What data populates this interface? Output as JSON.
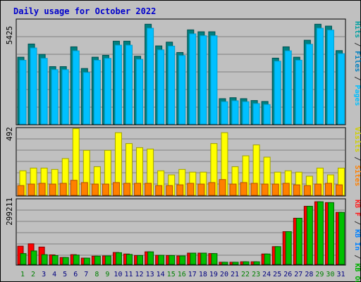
{
  "title": "Daily usage for October 2022",
  "colors": {
    "background": "#c0c0c0",
    "grid": "#808080",
    "title": "#0000cc",
    "hits": "#00c0ff",
    "hits_dark": "#00a0d0",
    "files": "#008080",
    "files_dark": "#005050",
    "pages": "#00ffff",
    "visits": "#ffff00",
    "sites": "#ff8000",
    "kb_in": "#00c000",
    "kb_out": "#ff0000",
    "day_weekend": "#008000",
    "day_weekday": "#000080"
  },
  "panel_labels": {
    "top": {
      "max": "5425",
      "legend": [
        "Hits",
        "Files",
        "Pages"
      ]
    },
    "middle": {
      "max": "492",
      "legend": [
        "Visits",
        "Sites"
      ]
    },
    "bottom": {
      "max": "299211",
      "legend": [
        "KB In",
        "KB Out",
        "KB F"
      ]
    }
  },
  "chart_data": [
    {
      "type": "bar",
      "title": "Daily usage for October 2022",
      "panel": "top",
      "categories": [
        "1",
        "2",
        "3",
        "4",
        "5",
        "6",
        "7",
        "8",
        "9",
        "10",
        "11",
        "12",
        "13",
        "14",
        "15",
        "16",
        "17",
        "18",
        "19",
        "20",
        "21",
        "22",
        "23",
        "24",
        "25",
        "26",
        "27",
        "28",
        "29",
        "30",
        "31"
      ],
      "ylim": [
        0,
        5425
      ],
      "series": [
        {
          "name": "Hits",
          "values": [
            3550,
            4250,
            3700,
            3050,
            3050,
            4100,
            2950,
            3550,
            3650,
            4400,
            4400,
            3600,
            5300,
            4150,
            4350,
            3800,
            5000,
            4900,
            4900,
            1350,
            1400,
            1350,
            1250,
            1200,
            3500,
            4100,
            3550,
            4450,
            5300,
            5200,
            3900
          ]
        },
        {
          "name": "Files",
          "values": [
            3500,
            4150,
            3600,
            3000,
            3000,
            4000,
            2850,
            3500,
            3600,
            4300,
            4300,
            3550,
            5200,
            4050,
            4250,
            3750,
            4900,
            4800,
            4800,
            1300,
            1350,
            1300,
            1200,
            1150,
            3450,
            4000,
            3500,
            4350,
            5200,
            5100,
            3850
          ]
        },
        {
          "name": "Pages",
          "values": [
            3500,
            4150,
            3600,
            3000,
            3000,
            4000,
            2850,
            3500,
            3600,
            4300,
            4300,
            3550,
            5200,
            4050,
            4250,
            3750,
            4900,
            4800,
            4800,
            1300,
            1350,
            1300,
            1200,
            1150,
            3450,
            4000,
            3500,
            4350,
            5200,
            5100,
            3850
          ]
        }
      ]
    },
    {
      "type": "bar",
      "panel": "middle",
      "categories": [
        "1",
        "2",
        "3",
        "4",
        "5",
        "6",
        "7",
        "8",
        "9",
        "10",
        "11",
        "12",
        "13",
        "14",
        "15",
        "16",
        "17",
        "18",
        "19",
        "20",
        "21",
        "22",
        "23",
        "24",
        "25",
        "26",
        "27",
        "28",
        "29",
        "30",
        "31"
      ],
      "ylim": [
        0,
        492
      ],
      "series": [
        {
          "name": "Visits",
          "values": [
            180,
            200,
            200,
            190,
            270,
            490,
            330,
            210,
            330,
            460,
            380,
            350,
            340,
            180,
            150,
            190,
            170,
            170,
            380,
            460,
            210,
            290,
            370,
            280,
            170,
            180,
            170,
            140,
            200,
            150,
            200
          ]
        },
        {
          "name": "Sites",
          "values": [
            130,
            150,
            160,
            150,
            160,
            200,
            170,
            150,
            150,
            170,
            160,
            160,
            160,
            130,
            130,
            140,
            160,
            150,
            170,
            210,
            150,
            170,
            160,
            150,
            150,
            160,
            140,
            130,
            150,
            160,
            140
          ]
        }
      ]
    },
    {
      "type": "bar",
      "panel": "bottom",
      "categories": [
        "1",
        "2",
        "3",
        "4",
        "5",
        "6",
        "7",
        "8",
        "9",
        "10",
        "11",
        "12",
        "13",
        "14",
        "15",
        "16",
        "17",
        "18",
        "19",
        "20",
        "21",
        "22",
        "23",
        "24",
        "25",
        "26",
        "27",
        "28",
        "29",
        "30",
        "31"
      ],
      "ylim": [
        0,
        299211
      ],
      "series": [
        {
          "name": "KB Out",
          "values": [
            84000,
            95000,
            80000,
            44000,
            32000,
            45000,
            29000,
            38000,
            39000,
            55000,
            48000,
            41000,
            58000,
            42000,
            41000,
            39000,
            52000,
            52000,
            50000,
            10000,
            10000,
            12000,
            12000,
            48000,
            82000,
            151000,
            213000,
            268000,
            289000,
            285000,
            240000
          ]
        },
        {
          "name": "KB In",
          "values": [
            50000,
            62000,
            45000,
            41000,
            32000,
            43000,
            29000,
            38000,
            39000,
            54000,
            46000,
            41000,
            58000,
            42000,
            41000,
            39000,
            52000,
            52000,
            50000,
            10000,
            10000,
            12000,
            12000,
            48000,
            82000,
            151000,
            213000,
            268000,
            289000,
            285000,
            240000
          ]
        }
      ]
    }
  ]
}
